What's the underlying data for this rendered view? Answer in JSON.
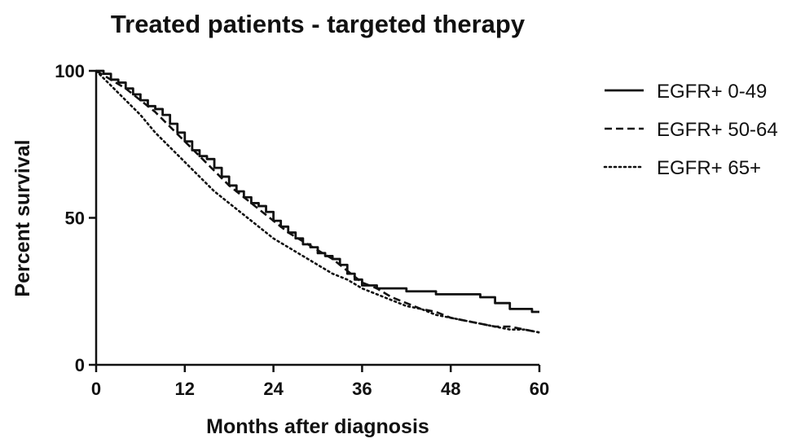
{
  "chart_data": {
    "type": "line",
    "title": "Treated patients - targeted therapy",
    "xlabel": "Months after diagnosis",
    "ylabel": "Percent survival",
    "xlim": [
      0,
      60
    ],
    "ylim": [
      0,
      100
    ],
    "xticks": [
      "0",
      "12",
      "24",
      "36",
      "48",
      "60"
    ],
    "yticks": [
      "0",
      "50",
      "100"
    ],
    "grid": false,
    "legend_position": "top-right",
    "series": [
      {
        "name": "EGFR+ 0-49",
        "style": "solid",
        "x": [
          0,
          1,
          2,
          3,
          4,
          5,
          6,
          7,
          8,
          9,
          10,
          11,
          12,
          13,
          14,
          15,
          16,
          17,
          18,
          19,
          20,
          21,
          22,
          23,
          24,
          25,
          26,
          27,
          28,
          29,
          30,
          31,
          32,
          33,
          34,
          35,
          36,
          38,
          40,
          42,
          44,
          46,
          48,
          50,
          52,
          54,
          56,
          58,
          59,
          60
        ],
        "y": [
          100,
          99,
          97,
          96,
          94,
          92,
          90,
          88,
          87,
          85,
          82,
          79,
          76,
          73,
          71,
          70,
          67,
          64,
          61,
          59,
          57,
          55,
          54,
          52,
          49,
          47,
          45,
          43,
          41,
          40,
          38,
          37,
          36,
          34,
          31,
          29,
          27,
          26,
          26,
          25,
          25,
          24,
          24,
          24,
          23,
          21,
          19,
          19,
          18,
          18
        ]
      },
      {
        "name": "EGFR+ 50-64",
        "style": "dashed",
        "x": [
          0,
          2,
          4,
          6,
          8,
          10,
          12,
          14,
          16,
          18,
          20,
          22,
          24,
          26,
          28,
          30,
          32,
          34,
          36,
          38,
          40,
          42,
          44,
          46,
          48,
          50,
          52,
          54,
          56,
          58,
          60
        ],
        "y": [
          100,
          97,
          94,
          90,
          86,
          81,
          76,
          71,
          66,
          61,
          57,
          53,
          49,
          45,
          42,
          39,
          36,
          32,
          28,
          26,
          23,
          21,
          19,
          18,
          16,
          15,
          14,
          13,
          13,
          12,
          11
        ]
      },
      {
        "name": "EGFR+ 65+",
        "style": "dotted",
        "x": [
          0,
          2,
          4,
          6,
          8,
          10,
          12,
          14,
          16,
          18,
          20,
          22,
          24,
          26,
          28,
          30,
          32,
          34,
          36,
          38,
          40,
          42,
          44,
          46,
          48,
          50,
          52,
          54,
          56,
          58,
          60
        ],
        "y": [
          100,
          95,
          90,
          85,
          79,
          74,
          69,
          64,
          59,
          55,
          51,
          47,
          43,
          40,
          37,
          34,
          31,
          29,
          26,
          24,
          22,
          20,
          19,
          17,
          16,
          15,
          14,
          13,
          12,
          12,
          11
        ]
      }
    ]
  }
}
